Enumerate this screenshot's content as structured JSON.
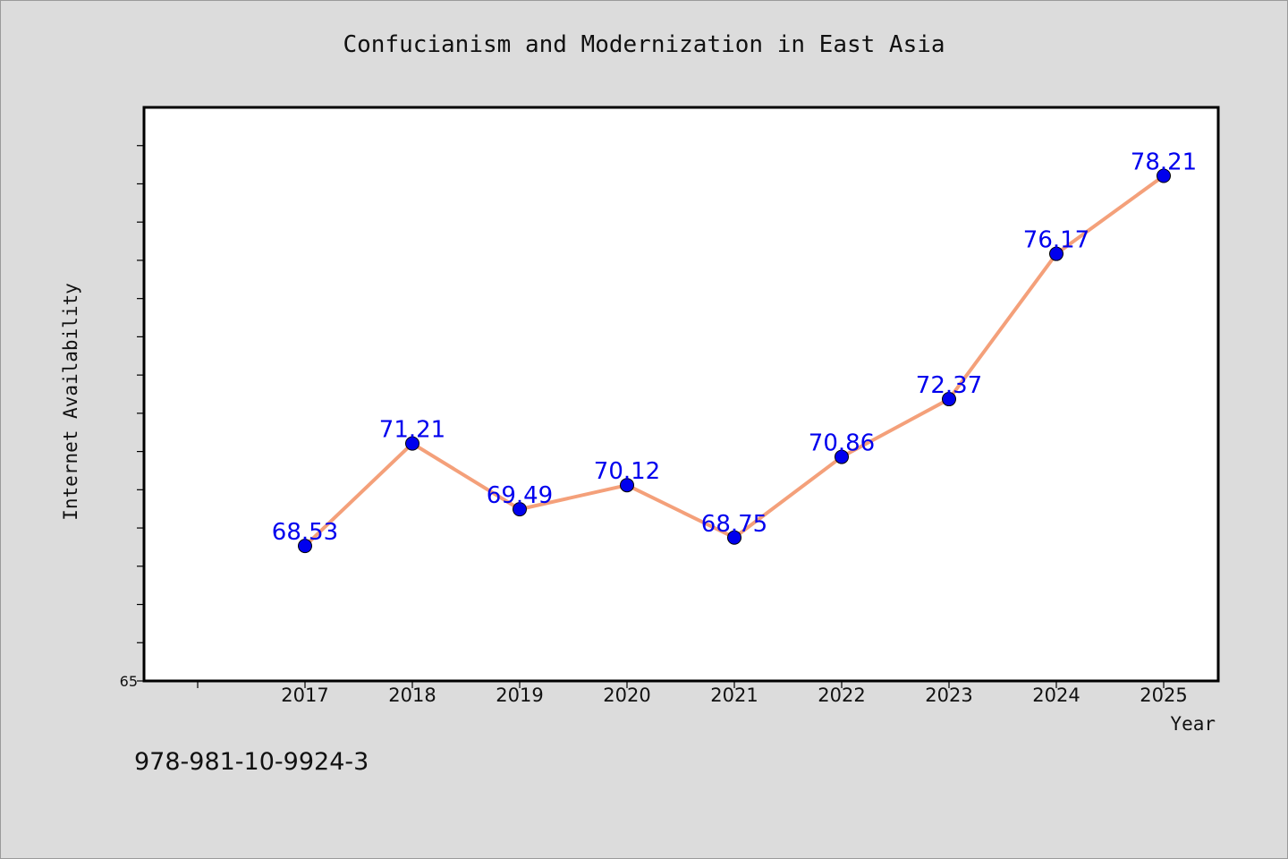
{
  "chart_data": {
    "type": "line",
    "title": "Confucianism and Modernization in East Asia",
    "xlabel": "Year",
    "ylabel": "Internet Availability",
    "categories": [
      "2017",
      "2018",
      "2019",
      "2020",
      "2021",
      "2022",
      "2023",
      "2024",
      "2025"
    ],
    "values": [
      68.53,
      71.21,
      69.49,
      70.12,
      68.75,
      70.86,
      72.37,
      76.17,
      78.21
    ],
    "data_labels": [
      "68.53",
      "71.21",
      "69.49",
      "70.12",
      "68.75",
      "70.86",
      "72.37",
      "76.17",
      "78.21"
    ],
    "ylim": [
      65,
      80
    ],
    "y_tick_labels": [
      "65"
    ],
    "y_minor_tick_step": 1,
    "grid": false,
    "line_color": "#f4a07a",
    "marker_color": "#0000ee",
    "label_color": "#0000ee"
  },
  "footer": {
    "isbn": "978-981-10-9924-3"
  }
}
